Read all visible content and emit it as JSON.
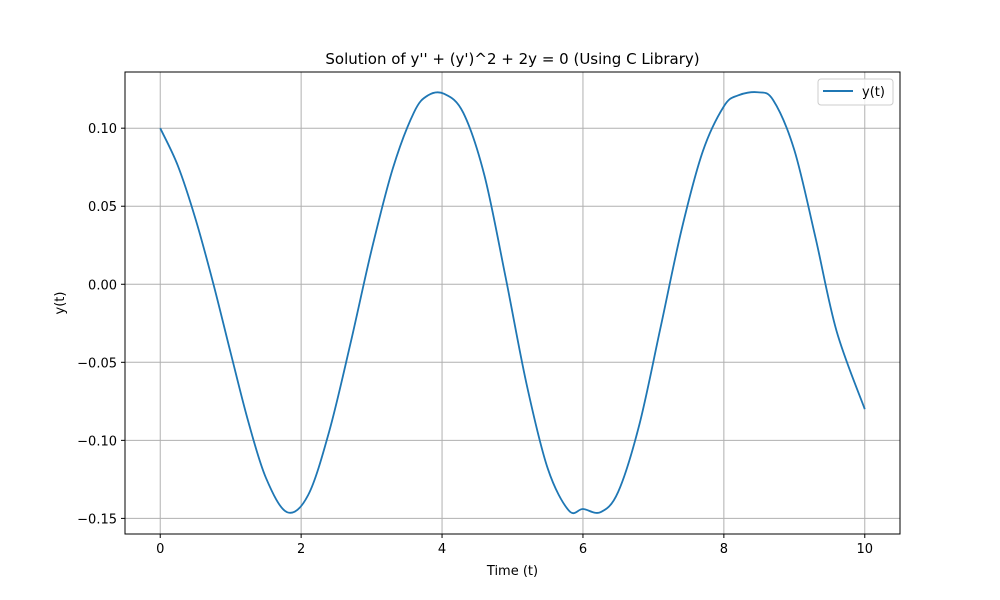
{
  "chart_data": {
    "type": "line",
    "title": "Solution of y'' + (y')^2 + 2y = 0 (Using C Library)",
    "xlabel": "Time (t)",
    "ylabel": "y(t)",
    "xlim": [
      -0.5,
      10.5
    ],
    "ylim": [
      -0.16,
      0.136
    ],
    "xticks": [
      0,
      2,
      4,
      6,
      8,
      10
    ],
    "xtick_labels": [
      "0",
      "2",
      "4",
      "6",
      "8",
      "10"
    ],
    "yticks": [
      -0.15,
      -0.1,
      -0.05,
      0.0,
      0.05,
      0.1
    ],
    "ytick_labels": [
      "−0.15",
      "−0.10",
      "−0.05",
      "0.00",
      "0.05",
      "0.10"
    ],
    "grid": true,
    "legend_position": "top-right",
    "series": [
      {
        "name": "y(t)",
        "color": "#1f77b4",
        "x": [
          0,
          0.25,
          0.5,
          0.75,
          1.0,
          1.25,
          1.5,
          1.8,
          2.1,
          2.4,
          2.7,
          3.0,
          3.3,
          3.6,
          3.8,
          4.03,
          4.3,
          4.6,
          4.9,
          5.2,
          5.5,
          5.8,
          6.0,
          6.25,
          6.5,
          6.8,
          7.1,
          7.4,
          7.7,
          8.0,
          8.2,
          8.48,
          8.7,
          9.0,
          9.3,
          9.6,
          10.0
        ],
        "y": [
          0.1,
          0.076,
          0.042,
          0.001,
          -0.044,
          -0.088,
          -0.124,
          -0.146,
          -0.135,
          -0.094,
          -0.038,
          0.022,
          0.074,
          0.11,
          0.121,
          0.122,
          0.11,
          0.07,
          0.005,
          -0.064,
          -0.118,
          -0.145,
          -0.144,
          -0.146,
          -0.133,
          -0.09,
          -0.028,
          0.035,
          0.085,
          0.114,
          0.121,
          0.123,
          0.118,
          0.086,
          0.03,
          -0.03,
          -0.08
        ]
      }
    ]
  }
}
